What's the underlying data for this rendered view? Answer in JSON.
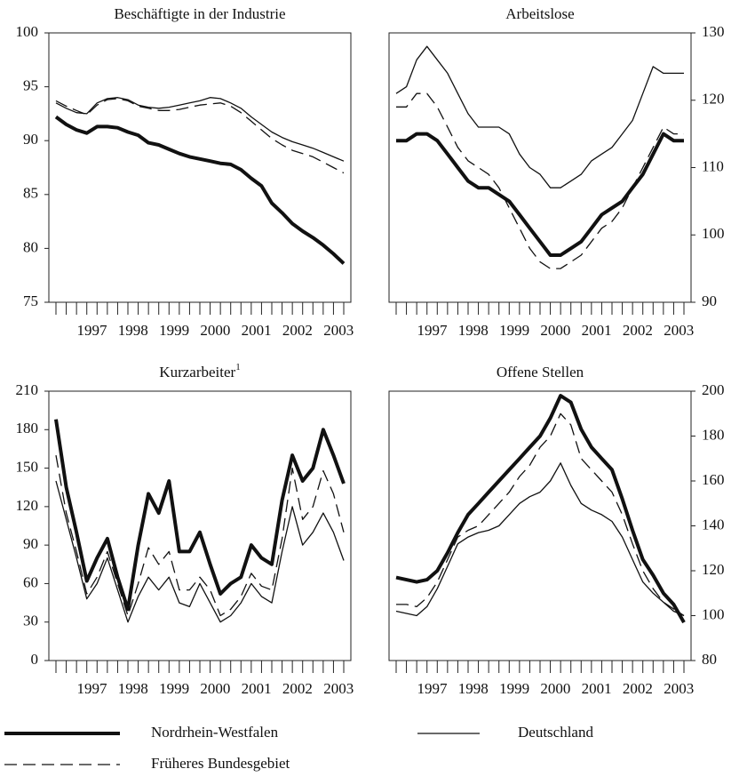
{
  "chart_data": [
    {
      "type": "line",
      "title": "Beschäftigte in der Industrie",
      "y_axis_side": "left",
      "categories": [
        null,
        null,
        null,
        "1997",
        null,
        null,
        null,
        "1998",
        null,
        null,
        null,
        "1999",
        null,
        null,
        null,
        "2000",
        null,
        null,
        null,
        "2001",
        null,
        null,
        null,
        "2002",
        null,
        null,
        null,
        "2003",
        null
      ],
      "ylim": [
        75,
        100
      ],
      "yticks": [
        75,
        80,
        85,
        90,
        95,
        100
      ],
      "series": [
        {
          "name": "Nordrhein-Westfalen",
          "color": "#111111",
          "width": 4,
          "dash": "solid",
          "values": [
            92.2,
            91.5,
            91.0,
            90.7,
            91.3,
            91.3,
            91.2,
            90.8,
            90.5,
            89.8,
            89.6,
            89.2,
            88.8,
            88.5,
            88.3,
            88.1,
            87.9,
            87.8,
            87.3,
            86.5,
            85.8,
            84.2,
            83.3,
            82.3,
            81.6,
            81.0,
            80.3,
            79.5,
            78.6
          ]
        },
        {
          "name": "Früheres Bundesgebiet",
          "color": "#111111",
          "width": 1.3,
          "dash": "dashed",
          "values": [
            93.7,
            93.2,
            92.8,
            92.4,
            93.3,
            93.8,
            93.9,
            93.7,
            93.2,
            93.0,
            92.8,
            92.8,
            92.9,
            93.1,
            93.3,
            93.4,
            93.5,
            93.2,
            92.6,
            91.8,
            91.0,
            90.2,
            89.6,
            89.1,
            88.8,
            88.5,
            88.0,
            87.5,
            87.0
          ]
        },
        {
          "name": "Deutschland",
          "color": "#111111",
          "width": 1.3,
          "dash": "solid",
          "values": [
            93.5,
            93.0,
            92.6,
            92.5,
            93.5,
            93.9,
            94.0,
            93.8,
            93.3,
            93.1,
            93.0,
            93.1,
            93.3,
            93.5,
            93.7,
            94.0,
            93.9,
            93.5,
            93.0,
            92.2,
            91.5,
            90.8,
            90.3,
            89.9,
            89.6,
            89.3,
            88.9,
            88.5,
            88.1
          ]
        }
      ]
    },
    {
      "type": "line",
      "title": "Arbeitslose",
      "y_axis_side": "right",
      "categories": [
        null,
        null,
        null,
        "1997",
        null,
        null,
        null,
        "1998",
        null,
        null,
        null,
        "1999",
        null,
        null,
        null,
        "2000",
        null,
        null,
        null,
        "2001",
        null,
        null,
        null,
        "2002",
        null,
        null,
        null,
        "2003",
        null
      ],
      "ylim": [
        90,
        130
      ],
      "yticks": [
        90,
        100,
        110,
        120,
        130
      ],
      "series": [
        {
          "name": "Nordrhein-Westfalen",
          "color": "#111111",
          "width": 4,
          "dash": "solid",
          "values": [
            114,
            114,
            115,
            115,
            114,
            112,
            110,
            108,
            107,
            107,
            106,
            105,
            103,
            101,
            99,
            97,
            97,
            98,
            99,
            101,
            103,
            104,
            105,
            107,
            109,
            112,
            115,
            114,
            114
          ]
        },
        {
          "name": "Früheres Bundesgebiet",
          "color": "#111111",
          "width": 1.3,
          "dash": "dashed",
          "values": [
            119,
            119,
            121,
            121,
            119,
            116,
            113,
            111,
            110,
            109,
            107,
            104,
            101,
            98,
            96,
            95,
            95,
            96,
            97,
            99,
            101,
            102,
            104,
            107,
            110,
            113,
            116,
            115,
            115
          ]
        },
        {
          "name": "Deutschland",
          "color": "#111111",
          "width": 1.3,
          "dash": "solid",
          "values": [
            121,
            122,
            126,
            128,
            126,
            124,
            121,
            118,
            116,
            116,
            116,
            115,
            112,
            110,
            109,
            107,
            107,
            108,
            109,
            111,
            112,
            113,
            115,
            117,
            121,
            125,
            124,
            124,
            124
          ]
        }
      ]
    },
    {
      "type": "line",
      "title": "Kurzarbeiter",
      "title_note": "1",
      "y_axis_side": "left",
      "categories": [
        null,
        null,
        null,
        "1997",
        null,
        null,
        null,
        "1998",
        null,
        null,
        null,
        "1999",
        null,
        null,
        null,
        "2000",
        null,
        null,
        null,
        "2001",
        null,
        null,
        null,
        "2002",
        null,
        null,
        null,
        "2003",
        null
      ],
      "ylim": [
        0,
        210
      ],
      "yticks": [
        0,
        30,
        60,
        90,
        120,
        150,
        180,
        210
      ],
      "series": [
        {
          "name": "Nordrhein-Westfalen",
          "color": "#111111",
          "width": 4,
          "dash": "solid",
          "values": [
            188,
            135,
            100,
            62,
            80,
            95,
            65,
            40,
            90,
            130,
            115,
            140,
            85,
            85,
            100,
            75,
            52,
            60,
            65,
            90,
            80,
            75,
            125,
            160,
            140,
            150,
            180,
            160,
            138
          ]
        },
        {
          "name": "Früheres Bundesgebiet",
          "color": "#111111",
          "width": 1.3,
          "dash": "dashed",
          "values": [
            160,
            115,
            85,
            52,
            65,
            85,
            60,
            35,
            60,
            88,
            75,
            85,
            55,
            55,
            65,
            55,
            35,
            40,
            50,
            68,
            58,
            55,
            95,
            150,
            110,
            120,
            148,
            130,
            100
          ]
        },
        {
          "name": "Deutschland",
          "color": "#111111",
          "width": 1.3,
          "dash": "solid",
          "values": [
            140,
            110,
            80,
            48,
            60,
            80,
            55,
            30,
            50,
            65,
            55,
            65,
            45,
            42,
            60,
            45,
            30,
            35,
            45,
            60,
            50,
            45,
            85,
            120,
            90,
            100,
            115,
            100,
            78
          ]
        }
      ]
    },
    {
      "type": "line",
      "title": "Offene Stellen",
      "y_axis_side": "right",
      "categories": [
        null,
        null,
        null,
        "1997",
        null,
        null,
        null,
        "1998",
        null,
        null,
        null,
        "1999",
        null,
        null,
        null,
        "2000",
        null,
        null,
        null,
        "2001",
        null,
        null,
        null,
        "2002",
        null,
        null,
        null,
        "2003",
        null
      ],
      "ylim": [
        80,
        200
      ],
      "yticks": [
        80,
        100,
        120,
        140,
        160,
        180,
        200
      ],
      "series": [
        {
          "name": "Nordrhein-Westfalen",
          "color": "#111111",
          "width": 4,
          "dash": "solid",
          "values": [
            117,
            116,
            115,
            116,
            120,
            128,
            137,
            145,
            150,
            155,
            160,
            165,
            170,
            175,
            180,
            188,
            198,
            195,
            183,
            175,
            170,
            165,
            152,
            138,
            125,
            118,
            110,
            105,
            97
          ]
        },
        {
          "name": "Früheres Bundesgebiet",
          "color": "#111111",
          "width": 1.3,
          "dash": "dashed",
          "values": [
            105,
            105,
            104,
            108,
            115,
            125,
            135,
            138,
            140,
            145,
            150,
            155,
            162,
            167,
            175,
            180,
            190,
            185,
            170,
            165,
            160,
            155,
            145,
            132,
            120,
            112,
            106,
            103,
            100
          ]
        },
        {
          "name": "Deutschland",
          "color": "#111111",
          "width": 1.3,
          "dash": "solid",
          "values": [
            102,
            101,
            100,
            104,
            112,
            122,
            132,
            135,
            137,
            138,
            140,
            145,
            150,
            153,
            155,
            160,
            168,
            158,
            150,
            147,
            145,
            142,
            135,
            125,
            115,
            110,
            106,
            102,
            100
          ]
        }
      ]
    }
  ]
}
